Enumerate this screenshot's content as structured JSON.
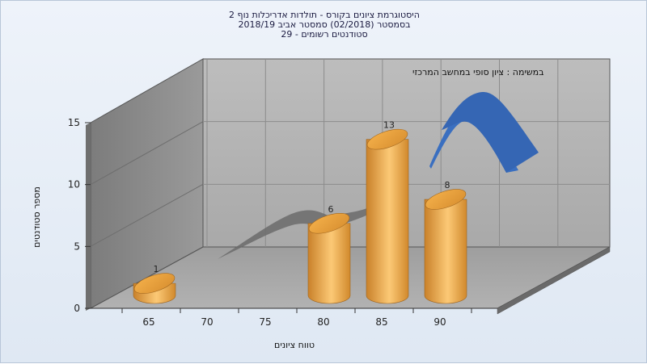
{
  "title_lines": [
    "היסטוגרמת ציונים בקורס - תולדות אדריכלות נוף 2",
    "בסמסטר  (02/2018)  סמסטר אביב 2018/19",
    "סטודנטים רשומים - 29"
  ],
  "chart_data": {
    "type": "bar",
    "categories": [
      "65",
      "70",
      "75",
      "80",
      "85",
      "90"
    ],
    "values": [
      1,
      null,
      null,
      6,
      13,
      8
    ],
    "ylim": [
      0,
      15
    ],
    "y_ticks": [
      "0",
      "5",
      "10",
      "15"
    ],
    "xlabel": "טווח ציונים",
    "ylabel": "מספר סטודנטים",
    "annotation": "במשימה : ציון סופי במחשב המרכזי",
    "grid": true,
    "colors": {
      "bar": "#e8a83c",
      "curve_low": "#6b6b6b",
      "curve_high": "#3a6fc0",
      "back_wall": "#b4b4b4",
      "side_wall": "#8a8a8a",
      "floor": "#a8a8a8"
    }
  }
}
